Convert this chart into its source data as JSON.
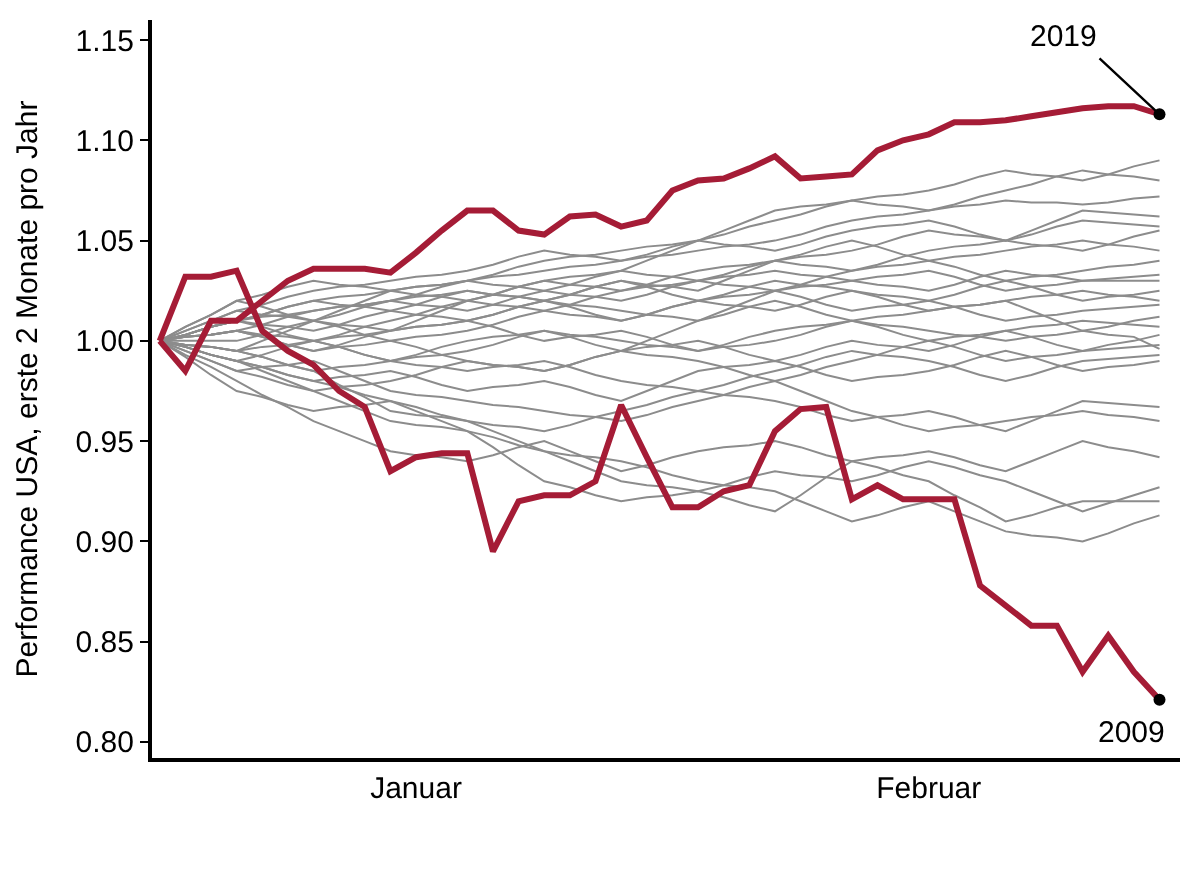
{
  "chart_data": {
    "type": "line",
    "ylabel": "Performance USA, erste 2 Monate pro Jahr",
    "categories": [
      null,
      null,
      null,
      null,
      null,
      null,
      null,
      null,
      null,
      null,
      "Januar",
      null,
      null,
      null,
      null,
      null,
      null,
      null,
      null,
      null,
      null,
      null,
      null,
      null,
      null,
      null,
      null,
      null,
      null,
      null,
      "Februar",
      null,
      null,
      null,
      null,
      null,
      null,
      null,
      null,
      null
    ],
    "ylim": [
      0.792,
      1.16
    ],
    "yticks": [
      {
        "value": 0.8,
        "label": "0.80"
      },
      {
        "value": 0.85,
        "label": "0.85"
      },
      {
        "value": 0.9,
        "label": "0.90"
      },
      {
        "value": 0.95,
        "label": "0.95"
      },
      {
        "value": 1.0,
        "label": "1.00"
      },
      {
        "value": 1.05,
        "label": "1.05"
      },
      {
        "value": 1.1,
        "label": "1.10"
      },
      {
        "value": 1.15,
        "label": "1.15"
      }
    ],
    "legend": false,
    "marker": "none",
    "line_style": "solid",
    "series": [
      {
        "color": "#8c8c8c",
        "values": [
          1.0,
          1.003,
          1.007,
          1.01,
          1.013,
          1.017,
          1.02,
          1.022,
          1.023,
          1.025,
          1.027,
          1.028,
          1.03,
          1.033,
          1.037,
          1.04,
          1.042,
          1.043,
          1.045,
          1.047,
          1.048,
          1.05,
          1.053,
          1.057,
          1.06,
          1.063,
          1.067,
          1.07,
          1.072,
          1.073,
          1.075,
          1.078,
          1.082,
          1.085,
          1.083,
          1.082,
          1.08,
          1.083,
          1.087,
          1.09
        ]
      },
      {
        "color": "#8c8c8c",
        "values": [
          1.0,
          1.005,
          1.01,
          1.015,
          1.018,
          1.022,
          1.025,
          1.027,
          1.028,
          1.03,
          1.032,
          1.033,
          1.035,
          1.038,
          1.042,
          1.045,
          1.043,
          1.042,
          1.04,
          1.043,
          1.047,
          1.05,
          1.055,
          1.06,
          1.065,
          1.067,
          1.068,
          1.07,
          1.068,
          1.067,
          1.065,
          1.068,
          1.072,
          1.075,
          1.078,
          1.082,
          1.085,
          1.083,
          1.082,
          1.08
        ]
      },
      {
        "color": "#8c8c8c",
        "values": [
          1.0,
          1.007,
          1.013,
          1.02,
          1.017,
          1.013,
          1.01,
          1.015,
          1.02,
          1.025,
          1.027,
          1.028,
          1.03,
          1.032,
          1.033,
          1.035,
          1.037,
          1.038,
          1.04,
          1.042,
          1.043,
          1.045,
          1.047,
          1.048,
          1.05,
          1.053,
          1.057,
          1.06,
          1.062,
          1.063,
          1.065,
          1.067,
          1.068,
          1.07,
          1.069,
          1.069,
          1.068,
          1.069,
          1.071,
          1.072
        ]
      },
      {
        "color": "#8c8c8c",
        "values": [
          1.0,
          1.002,
          1.003,
          1.005,
          1.008,
          1.012,
          1.015,
          1.017,
          1.018,
          1.02,
          1.023,
          1.027,
          1.03,
          1.028,
          1.027,
          1.025,
          1.028,
          1.032,
          1.035,
          1.04,
          1.045,
          1.05,
          1.048,
          1.047,
          1.045,
          1.048,
          1.052,
          1.055,
          1.057,
          1.058,
          1.06,
          1.057,
          1.053,
          1.05,
          1.055,
          1.06,
          1.065,
          1.064,
          1.063,
          1.062
        ]
      },
      {
        "color": "#8c8c8c",
        "values": [
          1.0,
          0.998,
          0.997,
          0.995,
          1.0,
          1.005,
          1.01,
          1.008,
          1.007,
          1.005,
          1.01,
          1.015,
          1.02,
          1.023,
          1.027,
          1.03,
          1.028,
          1.027,
          1.025,
          1.028,
          1.032,
          1.035,
          1.037,
          1.038,
          1.04,
          1.042,
          1.043,
          1.045,
          1.048,
          1.052,
          1.055,
          1.053,
          1.052,
          1.05,
          1.053,
          1.057,
          1.06,
          1.059,
          1.058,
          1.057
        ]
      },
      {
        "color": "#8c8c8c",
        "values": [
          1.0,
          1.003,
          1.007,
          1.01,
          1.008,
          1.007,
          1.005,
          1.008,
          1.012,
          1.015,
          1.013,
          1.012,
          1.01,
          1.013,
          1.017,
          1.02,
          1.023,
          1.027,
          1.03,
          1.028,
          1.027,
          1.025,
          1.03,
          1.035,
          1.04,
          1.038,
          1.037,
          1.035,
          1.038,
          1.042,
          1.045,
          1.047,
          1.048,
          1.05,
          1.048,
          1.047,
          1.045,
          1.048,
          1.052,
          1.055
        ]
      },
      {
        "color": "#8c8c8c",
        "values": [
          1.0,
          1.007,
          1.013,
          1.02,
          1.023,
          1.027,
          1.03,
          1.028,
          1.027,
          1.025,
          1.023,
          1.022,
          1.02,
          1.023,
          1.027,
          1.03,
          1.032,
          1.033,
          1.035,
          1.033,
          1.032,
          1.03,
          1.033,
          1.037,
          1.04,
          1.043,
          1.047,
          1.05,
          1.047,
          1.043,
          1.04,
          1.042,
          1.043,
          1.045,
          1.047,
          1.048,
          1.05,
          1.048,
          1.047,
          1.045
        ]
      },
      {
        "color": "#8c8c8c",
        "values": [
          1.0,
          1.002,
          1.003,
          1.005,
          1.003,
          1.002,
          1.0,
          1.003,
          1.007,
          1.01,
          1.013,
          1.017,
          1.02,
          1.018,
          1.017,
          1.015,
          1.018,
          1.022,
          1.025,
          1.027,
          1.028,
          1.03,
          1.028,
          1.027,
          1.025,
          1.028,
          1.032,
          1.035,
          1.037,
          1.038,
          1.04,
          1.037,
          1.033,
          1.03,
          1.032,
          1.033,
          1.035,
          1.037,
          1.038,
          1.04
        ]
      },
      {
        "color": "#8c8c8c",
        "values": [
          1.0,
          1.003,
          1.007,
          1.01,
          1.012,
          1.013,
          1.015,
          1.017,
          1.018,
          1.02,
          1.018,
          1.017,
          1.015,
          1.018,
          1.022,
          1.025,
          1.023,
          1.022,
          1.02,
          1.023,
          1.027,
          1.03,
          1.032,
          1.033,
          1.035,
          1.033,
          1.032,
          1.03,
          1.028,
          1.027,
          1.025,
          1.028,
          1.032,
          1.035,
          1.033,
          1.032,
          1.03,
          1.031,
          1.032,
          1.033
        ]
      },
      {
        "color": "#8c8c8c",
        "values": [
          1.0,
          0.997,
          0.993,
          0.99,
          0.993,
          0.997,
          1.0,
          1.002,
          1.003,
          1.005,
          1.007,
          1.008,
          1.01,
          1.013,
          1.017,
          1.02,
          1.018,
          1.017,
          1.015,
          1.013,
          1.012,
          1.01,
          1.015,
          1.02,
          1.025,
          1.027,
          1.028,
          1.03,
          1.032,
          1.033,
          1.035,
          1.032,
          1.028,
          1.025,
          1.027,
          1.028,
          1.03,
          1.03,
          1.03,
          1.03
        ]
      },
      {
        "color": "#8c8c8c",
        "values": [
          1.0,
          1.005,
          1.01,
          1.015,
          1.013,
          1.012,
          1.01,
          1.013,
          1.017,
          1.02,
          1.022,
          1.023,
          1.025,
          1.023,
          1.022,
          1.02,
          1.023,
          1.027,
          1.03,
          1.027,
          1.023,
          1.02,
          1.018,
          1.017,
          1.015,
          1.018,
          1.022,
          1.025,
          1.023,
          1.022,
          1.02,
          1.023,
          1.027,
          1.03,
          1.027,
          1.023,
          1.02,
          1.022,
          1.023,
          1.025
        ]
      },
      {
        "color": "#8c8c8c",
        "values": [
          1.0,
          1.0,
          1.0,
          1.0,
          1.003,
          1.007,
          1.01,
          1.007,
          1.003,
          1.0,
          1.002,
          1.003,
          1.005,
          1.008,
          1.012,
          1.015,
          1.013,
          1.012,
          1.01,
          1.013,
          1.017,
          1.02,
          1.022,
          1.023,
          1.025,
          1.022,
          1.018,
          1.015,
          1.017,
          1.018,
          1.02,
          1.017,
          1.013,
          1.01,
          1.012,
          1.013,
          1.015,
          1.016,
          1.017,
          1.018
        ]
      },
      {
        "color": "#8c8c8c",
        "values": [
          1.0,
          0.998,
          0.997,
          0.995,
          0.992,
          0.988,
          0.985,
          0.987,
          0.988,
          0.99,
          0.993,
          0.997,
          1.0,
          1.002,
          1.003,
          1.005,
          1.002,
          0.998,
          0.995,
          1.0,
          1.005,
          1.01,
          1.013,
          1.017,
          1.02,
          1.017,
          1.013,
          1.01,
          1.012,
          1.013,
          1.015,
          1.017,
          1.018,
          1.02,
          1.015,
          1.01,
          1.005,
          1.007,
          1.01,
          1.012
        ]
      },
      {
        "color": "#8c8c8c",
        "values": [
          1.0,
          1.003,
          1.007,
          1.01,
          1.007,
          1.003,
          1.0,
          0.997,
          0.993,
          0.99,
          0.992,
          0.993,
          0.995,
          0.998,
          1.002,
          1.005,
          1.003,
          1.002,
          1.0,
          0.998,
          0.997,
          0.995,
          0.998,
          1.002,
          1.005,
          1.007,
          1.008,
          1.01,
          1.007,
          1.003,
          1.0,
          1.002,
          1.003,
          1.005,
          1.007,
          1.008,
          1.01,
          1.009,
          1.008,
          1.007
        ]
      },
      {
        "color": "#8c8c8c",
        "values": [
          1.0,
          0.995,
          0.99,
          0.985,
          0.982,
          0.978,
          0.975,
          0.977,
          0.978,
          0.98,
          0.983,
          0.987,
          0.99,
          0.988,
          0.987,
          0.985,
          0.988,
          0.992,
          0.995,
          0.997,
          0.998,
          1.0,
          0.997,
          0.993,
          0.99,
          0.993,
          0.997,
          1.0,
          0.998,
          0.997,
          0.995,
          0.998,
          1.002,
          1.005,
          1.002,
          0.998,
          0.995,
          0.998,
          1.0,
          1.003
        ]
      },
      {
        "color": "#8c8c8c",
        "values": [
          1.0,
          1.002,
          1.003,
          1.005,
          1.002,
          0.998,
          0.995,
          0.997,
          0.998,
          1.0,
          0.997,
          0.993,
          0.99,
          0.988,
          0.987,
          0.985,
          0.988,
          0.992,
          0.995,
          0.993,
          0.992,
          0.99,
          0.987,
          0.983,
          0.98,
          0.983,
          0.987,
          0.99,
          0.993,
          0.997,
          1.0,
          0.997,
          0.993,
          0.99,
          0.992,
          0.993,
          0.995,
          0.996,
          0.997,
          0.998
        ]
      },
      {
        "color": "#8c8c8c",
        "values": [
          1.0,
          0.997,
          0.993,
          0.99,
          0.987,
          0.983,
          0.98,
          0.982,
          0.983,
          0.985,
          0.982,
          0.978,
          0.975,
          0.977,
          0.978,
          0.98,
          0.977,
          0.973,
          0.97,
          0.975,
          0.98,
          0.985,
          0.987,
          0.988,
          0.99,
          0.987,
          0.983,
          0.98,
          0.982,
          0.983,
          0.985,
          0.988,
          0.992,
          0.995,
          0.992,
          0.988,
          0.985,
          0.987,
          0.988,
          0.99
        ]
      },
      {
        "color": "#8c8c8c",
        "values": [
          1.0,
          0.998,
          0.997,
          0.995,
          0.997,
          0.998,
          1.0,
          0.997,
          0.993,
          0.99,
          0.988,
          0.987,
          0.985,
          0.987,
          0.988,
          0.99,
          0.987,
          0.983,
          0.98,
          0.978,
          0.977,
          0.975,
          0.978,
          0.982,
          0.985,
          0.988,
          0.992,
          0.995,
          0.993,
          0.992,
          0.99,
          0.987,
          0.983,
          0.98,
          0.983,
          0.987,
          0.99,
          0.991,
          0.992,
          0.993
        ]
      },
      {
        "color": "#8c8c8c",
        "values": [
          1.0,
          0.992,
          0.983,
          0.975,
          0.972,
          0.968,
          0.965,
          0.967,
          0.968,
          0.97,
          0.967,
          0.963,
          0.96,
          0.958,
          0.957,
          0.955,
          0.958,
          0.962,
          0.965,
          0.968,
          0.972,
          0.975,
          0.973,
          0.972,
          0.97,
          0.967,
          0.963,
          0.96,
          0.962,
          0.963,
          0.965,
          0.962,
          0.958,
          0.955,
          0.96,
          0.965,
          0.97,
          0.969,
          0.968,
          0.967
        ]
      },
      {
        "color": "#8c8c8c",
        "values": [
          1.0,
          0.995,
          0.99,
          0.985,
          0.987,
          0.988,
          0.99,
          0.985,
          0.98,
          0.975,
          0.973,
          0.972,
          0.97,
          0.968,
          0.967,
          0.965,
          0.963,
          0.962,
          0.96,
          0.963,
          0.967,
          0.97,
          0.973,
          0.977,
          0.98,
          0.975,
          0.97,
          0.965,
          0.962,
          0.958,
          0.955,
          0.957,
          0.958,
          0.96,
          0.962,
          0.963,
          0.965,
          0.963,
          0.962,
          0.96
        ]
      },
      {
        "color": "#8c8c8c",
        "values": [
          1.0,
          0.993,
          0.987,
          0.98,
          0.973,
          0.967,
          0.96,
          0.955,
          0.95,
          0.945,
          0.943,
          0.942,
          0.94,
          0.943,
          0.947,
          0.95,
          0.945,
          0.94,
          0.935,
          0.938,
          0.942,
          0.945,
          0.947,
          0.948,
          0.95,
          0.947,
          0.943,
          0.94,
          0.942,
          0.943,
          0.945,
          0.942,
          0.938,
          0.935,
          0.94,
          0.945,
          0.95,
          0.947,
          0.945,
          0.942
        ]
      },
      {
        "color": "#8c8c8c",
        "values": [
          1.0,
          0.997,
          0.993,
          0.99,
          0.985,
          0.98,
          0.975,
          0.97,
          0.965,
          0.96,
          0.958,
          0.957,
          0.955,
          0.952,
          0.948,
          0.945,
          0.94,
          0.935,
          0.93,
          0.928,
          0.927,
          0.925,
          0.928,
          0.932,
          0.935,
          0.933,
          0.932,
          0.93,
          0.933,
          0.937,
          0.94,
          0.937,
          0.933,
          0.93,
          0.925,
          0.92,
          0.915,
          0.919,
          0.923,
          0.927
        ]
      },
      {
        "color": "#8c8c8c",
        "values": [
          1.0,
          0.997,
          0.993,
          0.99,
          0.987,
          0.983,
          0.98,
          0.977,
          0.973,
          0.97,
          0.965,
          0.96,
          0.955,
          0.947,
          0.938,
          0.93,
          0.927,
          0.923,
          0.92,
          0.922,
          0.923,
          0.925,
          0.922,
          0.918,
          0.915,
          0.923,
          0.932,
          0.94,
          0.937,
          0.933,
          0.93,
          0.923,
          0.917,
          0.91,
          0.913,
          0.917,
          0.92,
          0.92,
          0.92,
          0.92
        ]
      },
      {
        "color": "#8c8c8c",
        "values": [
          1.0,
          0.998,
          0.997,
          0.995,
          0.992,
          0.988,
          0.985,
          0.978,
          0.972,
          0.965,
          0.963,
          0.962,
          0.96,
          0.955,
          0.95,
          0.945,
          0.943,
          0.942,
          0.94,
          0.937,
          0.933,
          0.93,
          0.928,
          0.927,
          0.925,
          0.92,
          0.915,
          0.91,
          0.913,
          0.917,
          0.92,
          0.915,
          0.91,
          0.905,
          0.903,
          0.902,
          0.9,
          0.904,
          0.909,
          0.913
        ]
      },
      {
        "color": "#8c8c8c",
        "values": [
          1.0,
          1.003,
          1.007,
          1.01,
          1.013,
          1.017,
          1.02,
          1.018,
          1.017,
          1.015,
          1.018,
          1.022,
          1.025,
          1.023,
          1.022,
          1.02,
          1.017,
          1.013,
          1.01,
          1.013,
          1.017,
          1.02,
          1.023,
          1.027,
          1.03,
          1.028,
          1.027,
          1.025,
          1.022,
          1.018,
          1.015,
          1.017,
          1.018,
          1.02,
          1.022,
          1.023,
          1.025,
          1.023,
          1.022,
          1.02
        ]
      },
      {
        "color": "#8c8c8c",
        "values": [
          1.0,
          1.002,
          1.003,
          1.005,
          1.002,
          0.998,
          0.995,
          0.998,
          1.002,
          1.005,
          1.007,
          1.008,
          1.01,
          1.007,
          1.003,
          1.0,
          1.002,
          1.003,
          1.005,
          1.002,
          0.998,
          0.995,
          0.997,
          0.998,
          1.0,
          1.003,
          1.007,
          1.01,
          1.008,
          1.007,
          1.005,
          1.003,
          1.002,
          1.0,
          1.002,
          1.003,
          1.005,
          1.003,
          1.002,
          0.996
        ]
      },
      {
        "name": "2019",
        "color": "#a51c36",
        "values": [
          1.0,
          0.985,
          1.01,
          1.01,
          1.02,
          1.03,
          1.036,
          1.036,
          1.036,
          1.034,
          1.044,
          1.055,
          1.065,
          1.065,
          1.055,
          1.053,
          1.062,
          1.063,
          1.057,
          1.06,
          1.075,
          1.08,
          1.081,
          1.086,
          1.092,
          1.081,
          1.082,
          1.083,
          1.095,
          1.1,
          1.103,
          1.109,
          1.109,
          1.11,
          1.112,
          1.114,
          1.116,
          1.117,
          1.117,
          1.113
        ]
      },
      {
        "name": "2009",
        "color": "#a51c36",
        "values": [
          1.0,
          1.032,
          1.032,
          1.035,
          1.005,
          0.995,
          0.988,
          0.975,
          0.967,
          0.935,
          0.942,
          0.944,
          0.944,
          0.895,
          0.92,
          0.923,
          0.923,
          0.93,
          0.968,
          0.942,
          0.917,
          0.917,
          0.925,
          0.928,
          0.955,
          0.966,
          0.967,
          0.921,
          0.928,
          0.921,
          0.921,
          0.921,
          0.878,
          0.868,
          0.858,
          0.858,
          0.835,
          0.853,
          0.835,
          0.821
        ]
      }
    ]
  }
}
